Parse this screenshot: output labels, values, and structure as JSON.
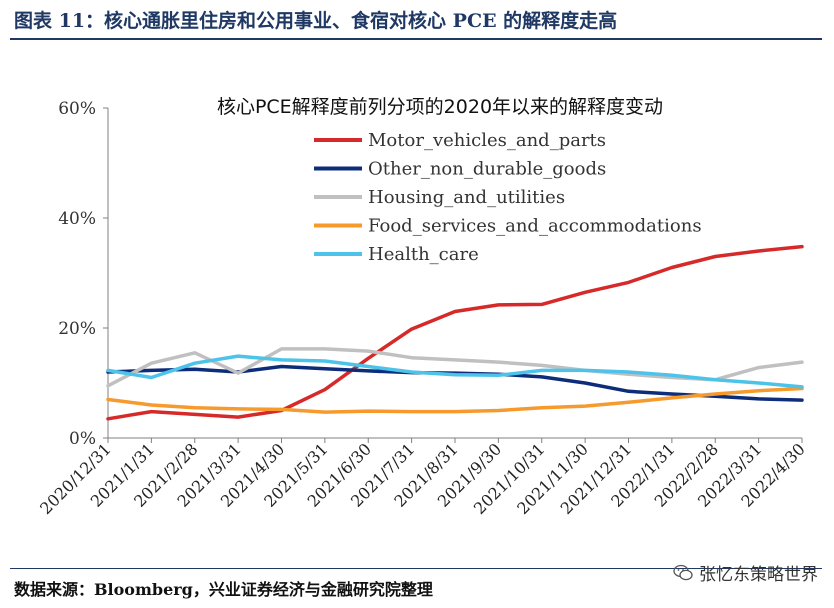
{
  "figure": {
    "title": "图表 11：核心通胀里住房和公用事业、食宿对核心 PCE 的解释度走高",
    "source": "数据来源：Bloomberg，兴业证券经济与金融研究院整理",
    "watermark": "张忆东策略世界",
    "watermark_icon": "wechat-icon"
  },
  "chart_data": {
    "type": "line",
    "title": "核心PCE解释度前列分项的2020年以来的解释度变动",
    "xlabel": "",
    "ylabel": "",
    "ylim": [
      0,
      60
    ],
    "yticks": [
      0,
      20,
      40,
      60
    ],
    "ytick_labels": [
      "0%",
      "20%",
      "40%",
      "60%"
    ],
    "x": [
      "2020/12/31",
      "2021/1/31",
      "2021/2/28",
      "2021/3/31",
      "2021/4/30",
      "2021/5/31",
      "2021/6/30",
      "2021/7/31",
      "2021/8/31",
      "2021/9/30",
      "2021/10/31",
      "2021/11/30",
      "2021/12/31",
      "2022/1/31",
      "2022/2/28",
      "2022/3/31",
      "2022/4/30"
    ],
    "legend_position": "top-center",
    "series": [
      {
        "name": "Motor_vehicles_and_parts",
        "color": "#d62a2a",
        "values": [
          3.5,
          4.8,
          4.3,
          3.8,
          5.0,
          8.8,
          14.5,
          19.8,
          23.0,
          24.2,
          24.3,
          26.5,
          28.3,
          31.0,
          33.0,
          34.0,
          34.8
        ]
      },
      {
        "name": "Other_non_durable_goods",
        "color": "#0d2c7a",
        "values": [
          12.0,
          12.3,
          12.5,
          12.0,
          13.0,
          12.6,
          12.2,
          11.9,
          11.8,
          11.6,
          11.1,
          10.0,
          8.5,
          8.0,
          7.6,
          7.1,
          6.9
        ]
      },
      {
        "name": "Housing_and_utilities",
        "color": "#c0c0c0",
        "values": [
          9.5,
          13.6,
          15.5,
          11.8,
          16.2,
          16.2,
          15.8,
          14.6,
          14.2,
          13.8,
          13.2,
          12.3,
          11.6,
          11.0,
          10.6,
          12.8,
          13.8
        ]
      },
      {
        "name": "Food_services_and_accommodations",
        "color": "#f79a2e",
        "values": [
          7.0,
          6.0,
          5.5,
          5.3,
          5.2,
          4.7,
          4.9,
          4.8,
          4.8,
          5.0,
          5.5,
          5.8,
          6.5,
          7.3,
          8.0,
          8.6,
          9.0
        ]
      },
      {
        "name": "Health_care",
        "color": "#4dc3ea",
        "values": [
          12.3,
          11.0,
          13.6,
          14.9,
          14.2,
          14.0,
          13.0,
          12.0,
          11.5,
          11.4,
          12.3,
          12.3,
          12.0,
          11.4,
          10.6,
          10.0,
          9.3
        ]
      }
    ]
  }
}
